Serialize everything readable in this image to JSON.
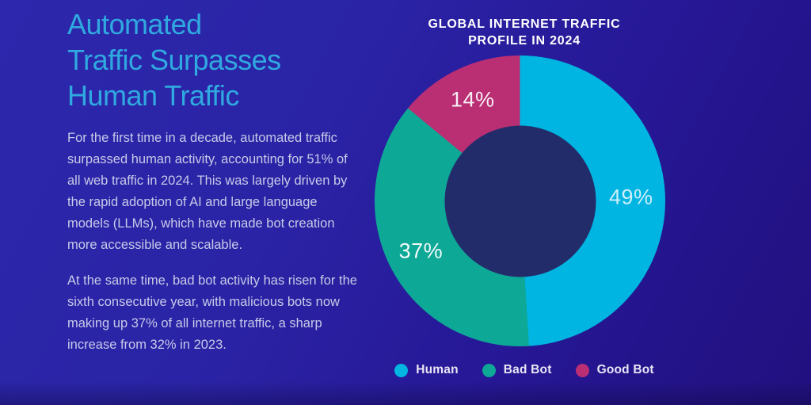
{
  "theme": {
    "background_top_left": "#2c27ac",
    "background_bottom_right": "#21107e",
    "accent_cyan": "#2fa9e0",
    "body_text_color": "#c7cae8",
    "chart_title_color": "#ffffff",
    "donut_hole_color": "#232c6b",
    "legend_text_color": "#e9e6f4"
  },
  "headline": {
    "line1": "Automated",
    "line2": "Traffic Surpasses",
    "line3": "Human Traffic"
  },
  "paragraphs": {
    "p1": "For the first time in a decade, automated traffic surpassed human activity, accounting for 51% of all web traffic in 2024. This was largely driven by the rapid adoption of AI and large language models (LLMs), which have made bot creation more accessible and scalable.",
    "p2": "At the same time, bad bot activity has risen for the sixth consecutive year, with malicious bots now making up 37% of all internet traffic, a sharp increase from 32% in 2023."
  },
  "chart": {
    "title_line1": "GLOBAL INTERNET TRAFFIC",
    "title_line2": "PROFILE IN 2024"
  },
  "chart_data": {
    "type": "pie",
    "subtype": "donut",
    "title": "Global Internet Traffic Profile in 2024",
    "series": [
      {
        "name": "Human",
        "value": 49,
        "label": "49%",
        "color": "#00b5e1",
        "label_color": "#cdeffb"
      },
      {
        "name": "Bad Bot",
        "value": 37,
        "label": "37%",
        "color": "#0ea897",
        "label_color": "#f2fbf8"
      },
      {
        "name": "Good Bot",
        "value": 14,
        "label": "14%",
        "color": "#ba2e73",
        "label_color": "#f7eef5"
      }
    ],
    "start_angle_deg": 0,
    "direction": "clockwise",
    "inner_radius_ratio": 0.52,
    "label_radius_ratio": 0.765,
    "legend_position": "bottom",
    "legend_entries": [
      "Human",
      "Bad Bot",
      "Good Bot"
    ]
  }
}
